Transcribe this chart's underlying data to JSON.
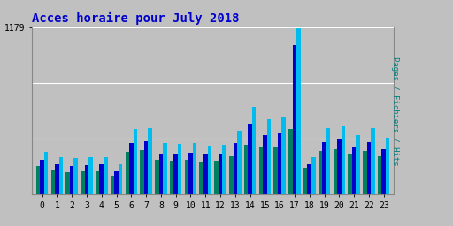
{
  "title": "Acces horaire pour July 2018",
  "ylabel": "Pages / Fichiers / Hits",
  "xlabel_ticks": [
    0,
    1,
    2,
    3,
    4,
    5,
    6,
    7,
    8,
    9,
    10,
    11,
    12,
    13,
    14,
    15,
    16,
    17,
    18,
    19,
    20,
    21,
    22,
    23
  ],
  "ymax": 1179,
  "bar_width": 0.27,
  "colors": {
    "pages": "#008060",
    "fichiers": "#0000CC",
    "hits": "#00BBEE"
  },
  "background_color": "#C0C0C0",
  "plot_bg": "#C0C0C0",
  "title_color": "#0000CC",
  "ylabel_color": "#008080",
  "pages": [
    200,
    170,
    155,
    165,
    165,
    130,
    300,
    310,
    245,
    240,
    245,
    230,
    235,
    270,
    350,
    330,
    340,
    460,
    185,
    305,
    320,
    280,
    305,
    270
  ],
  "fichiers": [
    245,
    210,
    200,
    205,
    210,
    165,
    365,
    375,
    290,
    290,
    295,
    280,
    285,
    360,
    490,
    420,
    430,
    1050,
    210,
    370,
    385,
    340,
    370,
    320
  ],
  "hits": [
    300,
    265,
    255,
    260,
    265,
    210,
    460,
    470,
    360,
    355,
    360,
    345,
    350,
    450,
    620,
    530,
    540,
    1179,
    260,
    465,
    480,
    420,
    465,
    400
  ]
}
